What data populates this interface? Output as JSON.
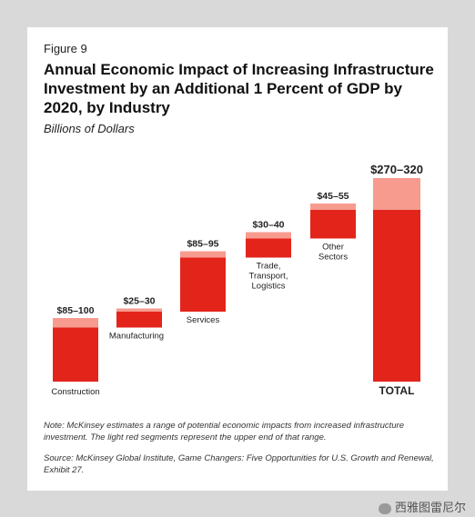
{
  "figure_label": "Figure 9",
  "title": "Annual Economic Impact of Increasing Infrastructure Investment by an Additional 1 Percent of GDP by 2020, by Industry",
  "subtitle": "Billions of Dollars",
  "note": "Note: McKinsey estimates a range of potential economic impacts from increased infrastructure investment. The light red segments represent the upper end of that range.",
  "source": "Source: McKinsey Global Institute, Game Changers: Five Opportunities for U.S. Growth and Renewal, Exhibit 27.",
  "watermark": "西雅图雷尼尔",
  "colors": {
    "low": "#e3241b",
    "upper": "#f79b8f"
  },
  "chart_data": {
    "type": "bar",
    "subtype": "waterfall",
    "categories": [
      "Construction",
      "Manufacturing",
      "Services",
      "Trade, Transport, Logistics",
      "Other Sectors",
      "TOTAL"
    ],
    "low": [
      85,
      25,
      85,
      30,
      45,
      270
    ],
    "high": [
      100,
      30,
      95,
      40,
      55,
      320
    ],
    "value_labels": [
      "$85–100",
      "$25–30",
      "$85–95",
      "$30–40",
      "$45–55",
      "$270–320"
    ],
    "category_label_lines": [
      [
        "Construction"
      ],
      [
        "Manufacturing"
      ],
      [
        "Services"
      ],
      [
        "Trade,",
        "Transport,",
        "Logistics"
      ],
      [
        "Other",
        "Sectors"
      ],
      [
        "TOTAL"
      ]
    ]
  }
}
